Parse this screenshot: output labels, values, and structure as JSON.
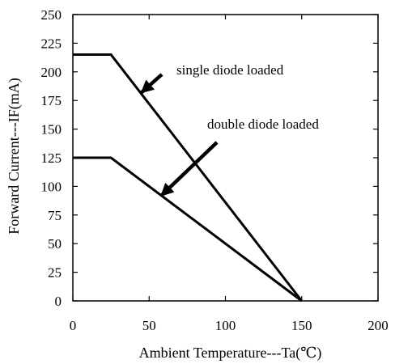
{
  "chart_data": {
    "type": "line",
    "title": "",
    "xlabel": "Ambient Temperature---Ta(℃)",
    "ylabel": "Forward Current---IF(mA)",
    "xlim": [
      0,
      200
    ],
    "ylim": [
      0,
      250
    ],
    "x_ticks": [
      0,
      50,
      100,
      150,
      200
    ],
    "y_ticks": [
      0,
      25,
      50,
      75,
      100,
      125,
      150,
      175,
      200,
      225,
      250
    ],
    "grid": false,
    "series": [
      {
        "x": [
          0,
          25,
          150
        ],
        "y": [
          215,
          215,
          0
        ]
      },
      {
        "x": [
          0,
          25,
          150
        ],
        "y": [
          125,
          125,
          0
        ]
      }
    ],
    "annotations": [
      {
        "text": "single diode loaded",
        "arrow_target": [
          45,
          182
        ]
      },
      {
        "text": "double diode loaded",
        "arrow_target": [
          58,
          92
        ]
      }
    ],
    "colors": {
      "line": "#000000",
      "background": "#ffffff"
    }
  }
}
